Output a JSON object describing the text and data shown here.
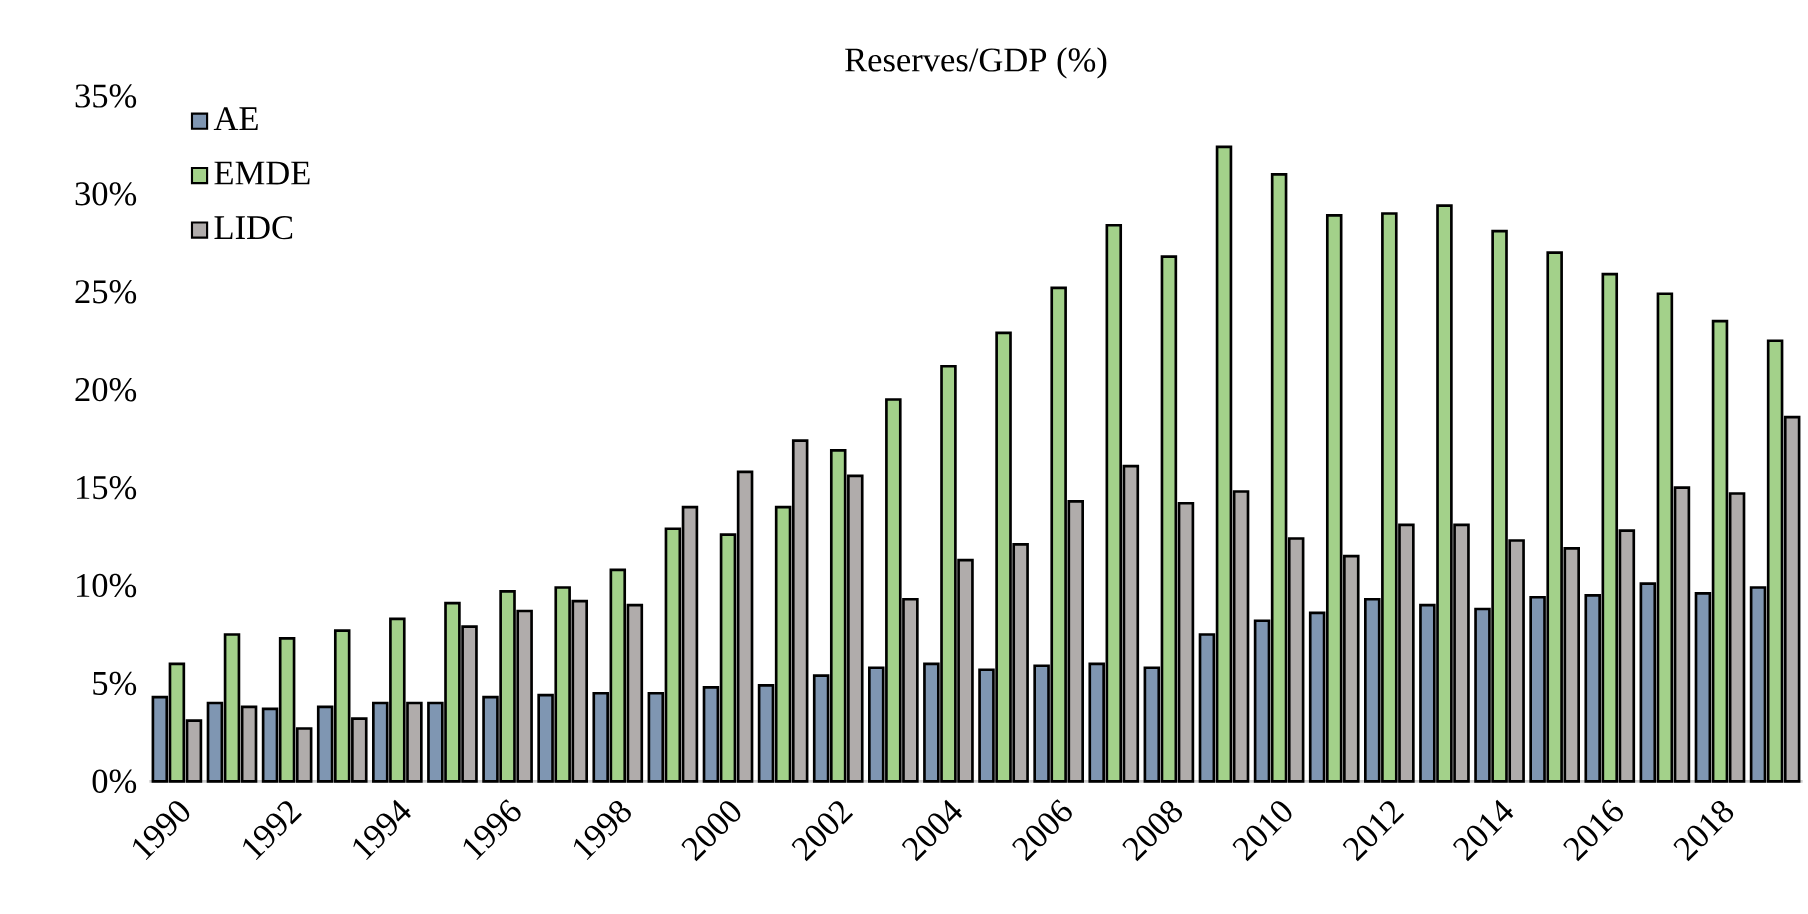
{
  "chart_data": {
    "type": "bar",
    "title": "Reserves/GDP (%)",
    "categories": [
      "1990",
      null,
      "1992",
      null,
      "1994",
      null,
      "1996",
      null,
      "1998",
      null,
      "2000",
      null,
      "2002",
      null,
      "2004",
      null,
      "2006",
      null,
      "2008",
      null,
      "2010",
      null,
      "2012",
      null,
      "2014",
      null,
      "2016",
      null,
      "2018",
      null
    ],
    "series": [
      {
        "name": "AE",
        "color": "#7f96b2",
        "values": [
          4.3,
          4.0,
          3.7,
          3.8,
          4.0,
          4.0,
          4.3,
          4.4,
          4.5,
          4.5,
          4.8,
          4.9,
          5.4,
          5.8,
          6.0,
          5.7,
          5.9,
          6.0,
          5.8,
          7.5,
          8.2,
          8.6,
          9.3,
          9.0,
          8.8,
          9.4,
          9.5,
          10.1,
          9.6,
          9.9
        ]
      },
      {
        "name": "EMDE",
        "color": "#a3d18a",
        "values": [
          6.0,
          7.5,
          7.3,
          7.7,
          8.3,
          9.1,
          9.7,
          9.9,
          10.8,
          12.9,
          12.6,
          14.0,
          16.9,
          19.5,
          21.2,
          22.9,
          25.2,
          28.4,
          26.8,
          32.4,
          31.0,
          28.9,
          29.0,
          29.4,
          28.1,
          27.0,
          25.9,
          24.9,
          23.5,
          22.5
        ]
      },
      {
        "name": "LIDC",
        "color": "#b0acab",
        "values": [
          3.1,
          3.8,
          2.7,
          3.2,
          4.0,
          7.9,
          8.7,
          9.2,
          9.0,
          14.0,
          15.8,
          17.4,
          15.6,
          9.3,
          11.3,
          12.1,
          14.3,
          16.1,
          14.2,
          14.8,
          12.4,
          11.5,
          13.1,
          13.1,
          12.3,
          11.9,
          12.8,
          15.0,
          14.7,
          18.6
        ]
      }
    ],
    "ylim": [
      0,
      35
    ],
    "yticks": [
      {
        "value": 0,
        "label": "0%"
      },
      {
        "value": 5,
        "label": "5%"
      },
      {
        "value": 10,
        "label": "10%"
      },
      {
        "value": 15,
        "label": "15%"
      },
      {
        "value": 20,
        "label": "20%"
      },
      {
        "value": 25,
        "label": "25%"
      },
      {
        "value": 30,
        "label": "30%"
      },
      {
        "value": 35,
        "label": "35%"
      }
    ],
    "legend": "top left",
    "grid": false
  }
}
